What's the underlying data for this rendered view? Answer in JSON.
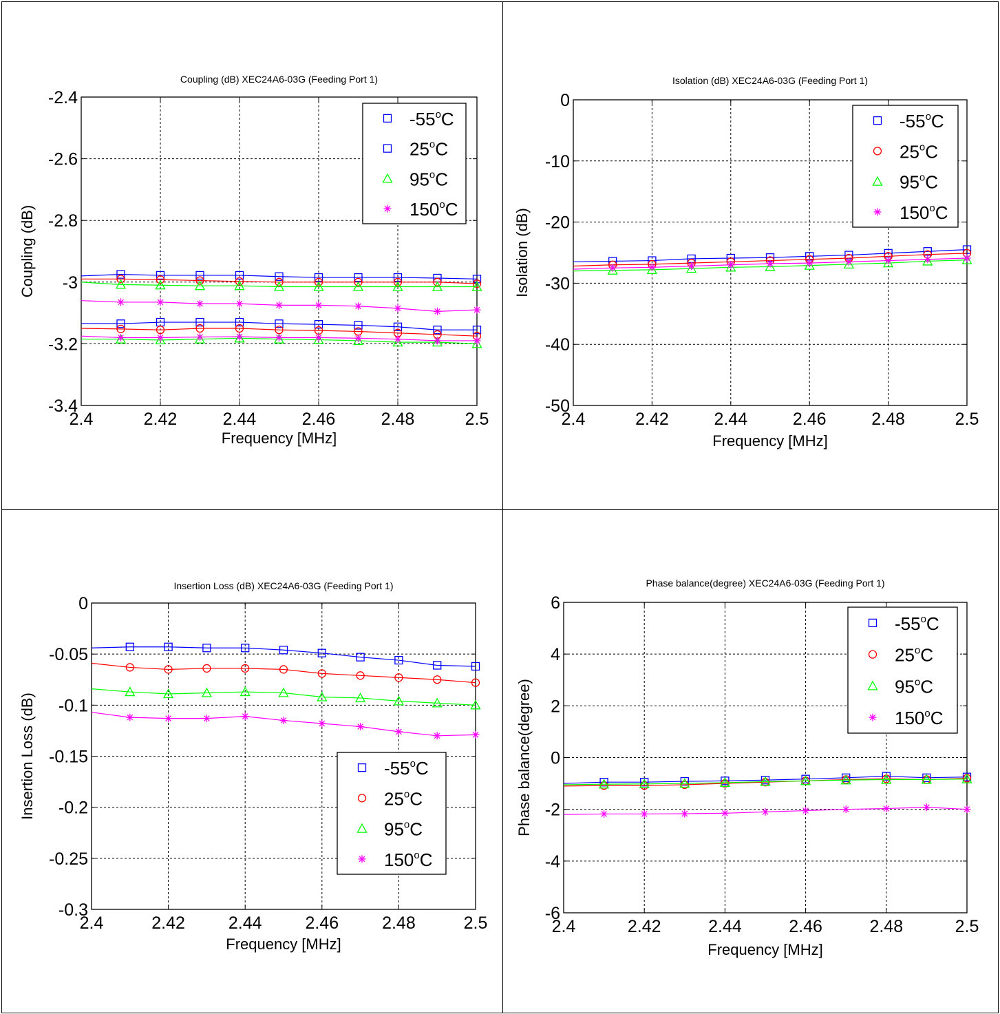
{
  "figure": {
    "background": "#ffffff"
  },
  "panels": [
    {
      "title": "Coupling (dB) XEC24A6-03G (Feeding Port 1)",
      "legend_position": "top-right",
      "chart_data": {
        "type": "line",
        "title": "Coupling (dB) XEC24A6-03G (Feeding Port 1)",
        "xlabel": "Frequency [MHz]",
        "ylabel": "Coupling (dB)",
        "xlim": [
          2.4,
          2.5
        ],
        "ylim": [
          -3.4,
          -2.4
        ],
        "xticks": [
          2.4,
          2.42,
          2.44,
          2.46,
          2.48,
          2.5
        ],
        "xtick_labels": [
          "2.4",
          "2.42",
          "2.44",
          "2.46",
          "2.48",
          "2.5"
        ],
        "yticks": [
          -2.4,
          -2.6,
          -2.8,
          -3,
          -3.2,
          -3.4
        ],
        "ytick_labels": [
          "-2.4",
          "-2.6",
          "-2.8",
          "-3",
          "-3.2",
          "-3.4"
        ],
        "grid": true,
        "legend": "top-right",
        "x": [
          2.4,
          2.41,
          2.42,
          2.43,
          2.44,
          2.45,
          2.46,
          2.47,
          2.48,
          2.49,
          2.5
        ],
        "series": [
          {
            "name": "-55",
            "label_unit": "C",
            "label_sup": "o",
            "color": "#0000ff",
            "marker": "square",
            "values": [
              -2.98,
              -2.975,
              -2.978,
              -2.978,
              -2.978,
              -2.982,
              -2.985,
              -2.985,
              -2.985,
              -2.987,
              -2.99
            ]
          },
          {
            "color": "#ff0000",
            "marker": "circle",
            "values": [
              -2.99,
              -2.99,
              -2.992,
              -2.995,
              -2.998,
              -3.0,
              -3.0,
              -3.0,
              -3.0,
              -3.0,
              -3.005
            ]
          },
          {
            "color": "#00ff00",
            "marker": "triangle",
            "values": [
              -3.0,
              -3.008,
              -3.01,
              -3.012,
              -3.012,
              -3.015,
              -3.015,
              -3.015,
              -3.015,
              -3.015,
              -3.015
            ]
          },
          {
            "color": "#ff00ff",
            "marker": "star",
            "values": [
              -3.06,
              -3.065,
              -3.065,
              -3.07,
              -3.07,
              -3.075,
              -3.075,
              -3.078,
              -3.085,
              -3.095,
              -3.09
            ]
          },
          {
            "name": "25",
            "label_unit": "C",
            "label_sup": "o",
            "color": "#0000ff",
            "marker": "square",
            "values": [
              -3.135,
              -3.135,
              -3.13,
              -3.13,
              -3.13,
              -3.135,
              -3.137,
              -3.14,
              -3.145,
              -3.155,
              -3.155
            ]
          },
          {
            "color": "#ff0000",
            "marker": "circle",
            "values": [
              -3.15,
              -3.152,
              -3.155,
              -3.15,
              -3.15,
              -3.155,
              -3.157,
              -3.16,
              -3.165,
              -3.17,
              -3.175
            ]
          },
          {
            "name": "95",
            "label_unit": "C",
            "label_sup": "o",
            "color": "#00ff00",
            "marker": "triangle",
            "values": [
              -3.185,
              -3.185,
              -3.188,
              -3.185,
              -3.182,
              -3.185,
              -3.187,
              -3.19,
              -3.195,
              -3.195,
              -3.2
            ]
          },
          {
            "name": "150",
            "label_unit": "C",
            "label_sup": "o",
            "color": "#ff00ff",
            "marker": "star",
            "values": [
              -3.175,
              -3.18,
              -3.18,
              -3.178,
              -3.177,
              -3.18,
              -3.18,
              -3.182,
              -3.185,
              -3.19,
              -3.19
            ]
          }
        ]
      }
    },
    {
      "title": "Isolation (dB) XEC24A6-03G (Feeding Port 1)",
      "legend_position": "top-right",
      "chart_data": {
        "type": "line",
        "title": "Isolation (dB) XEC24A6-03G (Feeding Port 1)",
        "xlabel": "Frequency [MHz]",
        "ylabel": "Isolation (dB)",
        "xlim": [
          2.4,
          2.5
        ],
        "ylim": [
          -50,
          0
        ],
        "xticks": [
          2.4,
          2.42,
          2.44,
          2.46,
          2.48,
          2.5
        ],
        "xtick_labels": [
          "2.4",
          "2.42",
          "2.44",
          "2.46",
          "2.48",
          "2.5"
        ],
        "yticks": [
          0,
          -10,
          -20,
          -30,
          -40,
          -50
        ],
        "ytick_labels": [
          "0",
          "-10",
          "-20",
          "-30",
          "-40",
          "-50"
        ],
        "grid": true,
        "legend": "top-right",
        "x": [
          2.4,
          2.41,
          2.42,
          2.43,
          2.44,
          2.45,
          2.46,
          2.47,
          2.48,
          2.49,
          2.5
        ],
        "series": [
          {
            "name": "-55",
            "label_unit": "C",
            "label_sup": "o",
            "color": "#0000ff",
            "marker": "square",
            "values": [
              -26.5,
              -26.4,
              -26.3,
              -26.0,
              -25.9,
              -25.8,
              -25.6,
              -25.4,
              -25.1,
              -24.8,
              -24.5
            ]
          },
          {
            "name": "25",
            "label_unit": "C",
            "label_sup": "o",
            "color": "#ff0000",
            "marker": "circle",
            "values": [
              -27.2,
              -27.0,
              -26.9,
              -26.7,
              -26.5,
              -26.3,
              -26.1,
              -25.9,
              -25.6,
              -25.3,
              -25.1
            ]
          },
          {
            "name": "95",
            "label_unit": "C",
            "label_sup": "o",
            "color": "#00ff00",
            "marker": "triangle",
            "values": [
              -28.0,
              -27.9,
              -27.8,
              -27.6,
              -27.4,
              -27.3,
              -27.1,
              -26.9,
              -26.7,
              -26.4,
              -26.2
            ]
          },
          {
            "name": "150",
            "label_unit": "C",
            "label_sup": "o",
            "color": "#ff00ff",
            "marker": "star",
            "values": [
              -27.7,
              -27.5,
              -27.4,
              -27.2,
              -27.0,
              -26.8,
              -26.7,
              -26.5,
              -26.3,
              -26.1,
              -25.9
            ]
          }
        ]
      }
    },
    {
      "title": "Insertion Loss (dB) XEC24A6-03G (Feeding Port 1)",
      "legend_position": "bottom-right",
      "chart_data": {
        "type": "line",
        "title": "Insertion Loss (dB) XEC24A6-03G (Feeding Port 1)",
        "xlabel": "Frequency [MHz]",
        "ylabel": "Insertion Loss (dB)",
        "xlim": [
          2.4,
          2.5
        ],
        "ylim": [
          -0.3,
          0
        ],
        "xticks": [
          2.4,
          2.42,
          2.44,
          2.46,
          2.48,
          2.5
        ],
        "xtick_labels": [
          "2.4",
          "2.42",
          "2.44",
          "2.46",
          "2.48",
          "2.5"
        ],
        "yticks": [
          0,
          -0.05,
          -0.1,
          -0.15,
          -0.2,
          -0.25,
          -0.3
        ],
        "ytick_labels": [
          "0",
          "-0.05",
          "-0.1",
          "-0.15",
          "-0.2",
          "-0.25",
          "-0.3"
        ],
        "grid": true,
        "legend": "bottom-right",
        "x": [
          2.4,
          2.41,
          2.42,
          2.43,
          2.44,
          2.45,
          2.46,
          2.47,
          2.48,
          2.49,
          2.5
        ],
        "series": [
          {
            "name": "-55",
            "label_unit": "C",
            "label_sup": "o",
            "color": "#0000ff",
            "marker": "square",
            "values": [
              -0.044,
              -0.043,
              -0.043,
              -0.044,
              -0.044,
              -0.046,
              -0.049,
              -0.053,
              -0.056,
              -0.061,
              -0.062
            ]
          },
          {
            "name": "25",
            "label_unit": "C",
            "label_sup": "o",
            "color": "#ff0000",
            "marker": "circle",
            "values": [
              -0.059,
              -0.063,
              -0.065,
              -0.064,
              -0.064,
              -0.065,
              -0.069,
              -0.071,
              -0.073,
              -0.075,
              -0.078
            ]
          },
          {
            "name": "95",
            "label_unit": "C",
            "label_sup": "o",
            "color": "#00ff00",
            "marker": "triangle",
            "values": [
              -0.084,
              -0.087,
              -0.089,
              -0.088,
              -0.087,
              -0.088,
              -0.092,
              -0.093,
              -0.096,
              -0.098,
              -0.1
            ]
          },
          {
            "name": "150",
            "label_unit": "C",
            "label_sup": "o",
            "color": "#ff00ff",
            "marker": "star",
            "values": [
              -0.107,
              -0.112,
              -0.113,
              -0.113,
              -0.111,
              -0.115,
              -0.118,
              -0.121,
              -0.126,
              -0.13,
              -0.129
            ]
          }
        ]
      }
    },
    {
      "title": "Phase balance(degree) XEC24A6-03G (Feeding Port 1)",
      "legend_position": "top-right",
      "chart_data": {
        "type": "line",
        "title": "Phase balance(degree) XEC24A6-03G (Feeding Port 1)",
        "xlabel": "Frequency [MHz]",
        "ylabel": "Phase balance(degree)",
        "xlim": [
          2.4,
          2.5
        ],
        "ylim": [
          -6,
          6
        ],
        "xticks": [
          2.4,
          2.42,
          2.44,
          2.46,
          2.48,
          2.5
        ],
        "xtick_labels": [
          "2.4",
          "2.42",
          "2.44",
          "2.46",
          "2.48",
          "2.5"
        ],
        "yticks": [
          6,
          4,
          2,
          0,
          -2,
          -4,
          -6
        ],
        "ytick_labels": [
          "6",
          "4",
          "2",
          "0",
          "-2",
          "-4",
          "-6"
        ],
        "grid": true,
        "legend": "top-right",
        "x": [
          2.4,
          2.41,
          2.42,
          2.43,
          2.44,
          2.45,
          2.46,
          2.47,
          2.48,
          2.49,
          2.5
        ],
        "series": [
          {
            "name": "-55",
            "label_unit": "C",
            "label_sup": "o",
            "color": "#0000ff",
            "marker": "square",
            "values": [
              -1.0,
              -0.95,
              -0.95,
              -0.92,
              -0.9,
              -0.87,
              -0.83,
              -0.78,
              -0.72,
              -0.78,
              -0.75
            ]
          },
          {
            "name": "25",
            "label_unit": "C",
            "label_sup": "o",
            "color": "#ff0000",
            "marker": "circle",
            "values": [
              -1.1,
              -1.08,
              -1.08,
              -1.05,
              -1.0,
              -0.95,
              -0.9,
              -0.85,
              -0.82,
              -0.85,
              -0.8
            ]
          },
          {
            "name": "95",
            "label_unit": "C",
            "label_sup": "o",
            "color": "#00ff00",
            "marker": "triangle",
            "values": [
              -1.05,
              -1.03,
              -1.02,
              -1.0,
              -0.97,
              -0.93,
              -0.9,
              -0.87,
              -0.85,
              -0.85,
              -0.83
            ]
          },
          {
            "name": "150",
            "label_unit": "C",
            "label_sup": "o",
            "color": "#ff00ff",
            "marker": "star",
            "values": [
              -2.2,
              -2.18,
              -2.18,
              -2.17,
              -2.15,
              -2.1,
              -2.05,
              -2.0,
              -1.97,
              -1.92,
              -2.0
            ]
          }
        ]
      }
    }
  ]
}
